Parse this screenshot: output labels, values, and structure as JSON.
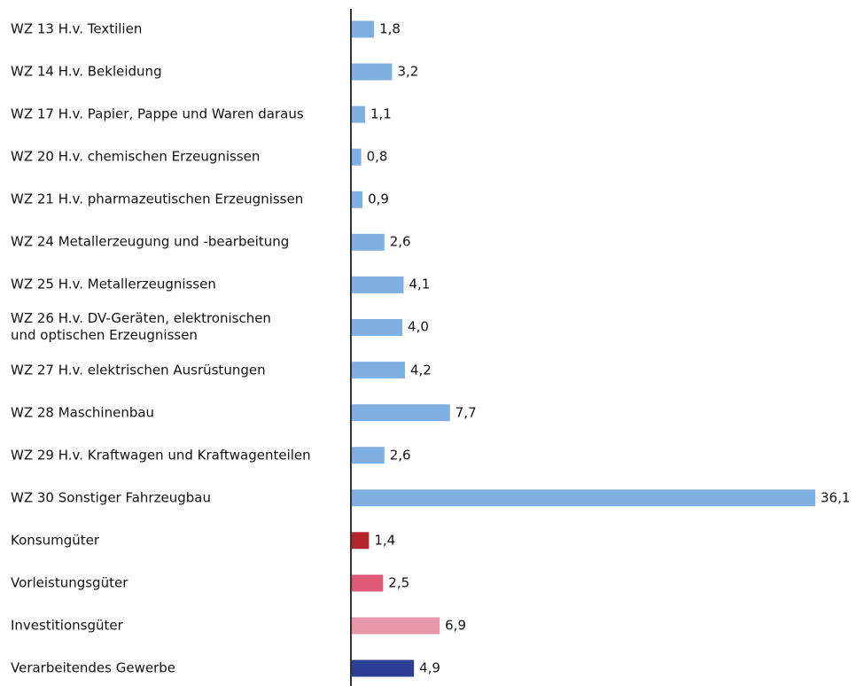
{
  "chart_data": {
    "type": "bar",
    "orientation": "horizontal",
    "categories": [
      "WZ 13 H.v. Textilien",
      "WZ 14 H.v. Bekleidung",
      "WZ 17 H.v. Papier, Pappe und Waren daraus",
      "WZ 20 H.v. chemischen Erzeugnissen",
      "WZ 21 H.v. pharmazeutischen Erzeugnissen",
      "WZ 24 Metallerzeugung und -bearbeitung",
      "WZ 25 H.v. Metallerzeugnissen",
      "WZ 26 H.v. DV-Geräten, elektronischen\nund optischen Erzeugnissen",
      "WZ 27 H.v. elektrischen Ausrüstungen",
      "WZ 28 Maschinenbau",
      "WZ 29 H.v. Kraftwagen und Kraftwagenteilen",
      "WZ 30 Sonstiger Fahrzeugbau",
      "Konsumgüter",
      "Vorleistungsgüter",
      "Investitionsgüter",
      "Verarbeitendes Gewerbe"
    ],
    "values": [
      1.8,
      3.2,
      1.1,
      0.8,
      0.9,
      2.6,
      4.1,
      4.0,
      4.2,
      7.7,
      2.6,
      36.1,
      1.4,
      2.5,
      6.9,
      4.9
    ],
    "value_labels": [
      "1,8",
      "3,2",
      "1,1",
      "0,8",
      "0,9",
      "2,6",
      "4,1",
      "4,0",
      "4,2",
      "7,7",
      "2,6",
      "36,1",
      "1,4",
      "2,5",
      "6,9",
      "4,9"
    ],
    "colors": [
      "#7fb1e0",
      "#7fb1e0",
      "#7fb1e0",
      "#7fb1e0",
      "#7fb1e0",
      "#7fb1e0",
      "#7fb1e0",
      "#7fb1e0",
      "#7fb1e0",
      "#7fb1e0",
      "#7fb1e0",
      "#7fb1e0",
      "#b5232d",
      "#de5a78",
      "#e896a9",
      "#2b3f96"
    ]
  }
}
